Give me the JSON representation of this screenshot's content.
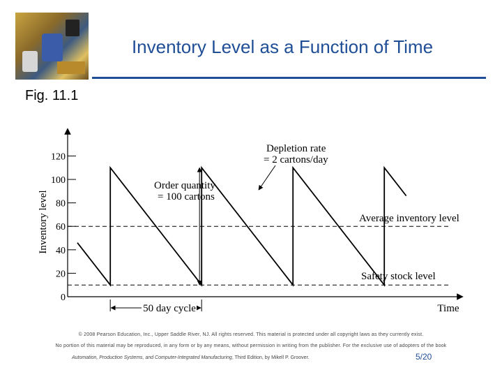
{
  "title": "Inventory Level as a Function of Time",
  "figure_label": "Fig. 11.1",
  "chart_data": {
    "type": "line",
    "title": "",
    "xlabel": "Time",
    "ylabel": "Inventory level",
    "y_ticks": [
      0,
      20,
      40,
      60,
      80,
      100,
      120
    ],
    "ylim": [
      0,
      130
    ],
    "x_ticks": [],
    "grid": false,
    "series": [
      {
        "name": "",
        "points": [
          {
            "x": 0,
            "y": 46
          },
          {
            "x": 18,
            "y": 10
          },
          {
            "x": 18,
            "y": 110
          },
          {
            "x": 68,
            "y": 10
          },
          {
            "x": 68,
            "y": 110
          },
          {
            "x": 118,
            "y": 10
          },
          {
            "x": 118,
            "y": 110
          },
          {
            "x": 168,
            "y": 10
          },
          {
            "x": 168,
            "y": 110
          },
          {
            "x": 180,
            "y": 86
          }
        ]
      }
    ],
    "reference_lines": [
      {
        "y": 60,
        "label": "Average inventory level"
      },
      {
        "y": 10,
        "label": "Safety stock level"
      }
    ],
    "annotations": {
      "depletion_line1": "Depletion rate",
      "depletion_line2": "= 2 cartons/day",
      "order_line1": "Order quantity",
      "order_line2": "= 100 cartons",
      "cycle": "50 day cycle"
    }
  },
  "footer": {
    "line1": "© 2008 Pearson Education, Inc., Upper Saddle River, NJ. All rights reserved. This material is protected under all copyright laws as they currently exist.",
    "line2": "No portion of this material may be reproduced, in any form or by any means, without permission in writing from the publisher. For the exclusive use of adopters of the book",
    "book_title": "Automation, Production Systems, and Computer-Integrated Manufacturing",
    "book_rest": ", Third Edition, by Mikell P. Groover.",
    "page": "5/20"
  }
}
